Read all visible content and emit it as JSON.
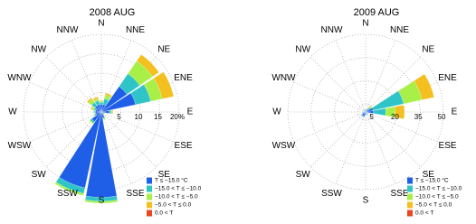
{
  "chart_data": [
    {
      "type": "windrose",
      "title": "2008 AUG",
      "categories": [
        "N",
        "NNE",
        "NE",
        "ENE",
        "E",
        "ESE",
        "SE",
        "SSE",
        "S",
        "SSW",
        "SW",
        "WSW",
        "W",
        "WNW",
        "NW",
        "NNW"
      ],
      "ylim": [
        0,
        20
      ],
      "yticks": [
        5,
        10,
        15,
        {
          "value": 20,
          "label": "20%"
        }
      ],
      "grid": true,
      "legend": "lower right",
      "series": [
        {
          "name": "T ≤ −15.0 °C",
          "color": "#1f5fe8",
          "values": [
            2,
            2,
            8,
            9,
            2,
            0.5,
            0.5,
            1.5,
            22,
            20,
            3,
            1.5,
            1.5,
            1.5,
            2,
            2
          ]
        },
        {
          "name": "−15.0 < T ≤ −10.0",
          "color": "#2fc4c8",
          "values": [
            0.5,
            1.5,
            4,
            4,
            0.5,
            0.3,
            0.3,
            0.3,
            1,
            1.5,
            0.5,
            0.3,
            0.3,
            0.5,
            1,
            1
          ]
        },
        {
          "name": "−10.0 < T ≤ −5.0",
          "color": "#a8f048",
          "values": [
            0.3,
            1,
            4,
            3,
            0.3,
            0.2,
            0.2,
            0.2,
            0.5,
            0.5,
            0.3,
            0.2,
            0.2,
            0.5,
            1,
            0.5
          ]
        },
        {
          "name": "−5.0 < T ≤ 0.0",
          "color": "#f4c020",
          "values": [
            0.2,
            0.5,
            2,
            3,
            0.2,
            0,
            0,
            0,
            0,
            0,
            0,
            0,
            0,
            0.3,
            0.5,
            0.5
          ]
        },
        {
          "name": "0.0 < T",
          "color": "#e84820",
          "values": [
            0,
            0,
            0,
            0,
            0,
            0,
            0,
            0,
            0,
            0,
            0,
            0,
            0,
            0,
            0,
            0
          ]
        }
      ]
    },
    {
      "type": "windrose",
      "title": "2009 AUG",
      "categories": [
        "N",
        "NNE",
        "NE",
        "ENE",
        "E",
        "ESE",
        "SE",
        "SSE",
        "S",
        "SSW",
        "SW",
        "WSW",
        "W",
        "WNW",
        "NW",
        "NNW"
      ],
      "ylim": [
        0,
        50
      ],
      "yticks": [
        5,
        20,
        35,
        50
      ],
      "grid": true,
      "legend": "lower right",
      "series": [
        {
          "name": "T ≤ −15.0 °C",
          "color": "#1f5fe8",
          "values": [
            1,
            1,
            2,
            5,
            5,
            1,
            1,
            1,
            2,
            3,
            3,
            2,
            1,
            1,
            1,
            1
          ]
        },
        {
          "name": "−15.0 < T ≤ −10.0",
          "color": "#2fc4c8",
          "values": [
            0.5,
            0.5,
            1.5,
            20,
            8,
            0.5,
            0.5,
            0.3,
            0.3,
            0.5,
            0.5,
            0.3,
            0.3,
            0.3,
            0.5,
            0.5
          ]
        },
        {
          "name": "−10.0 < T ≤ −5.0",
          "color": "#a8f048",
          "values": [
            0.3,
            0.3,
            1,
            12,
            6,
            0.3,
            0.3,
            0,
            0,
            0,
            0,
            0,
            0,
            0,
            0.3,
            0.3
          ]
        },
        {
          "name": "−5.0 < T ≤ 0.0",
          "color": "#f4c020",
          "values": [
            0,
            0,
            0.5,
            8,
            6,
            0,
            0,
            0,
            0,
            0,
            0,
            0,
            0,
            0,
            0,
            0
          ]
        },
        {
          "name": "0.0 < T",
          "color": "#e84820",
          "values": [
            0,
            0,
            0,
            0,
            0,
            0,
            0,
            0,
            0,
            0,
            0,
            0,
            0,
            0,
            0,
            0
          ]
        }
      ]
    }
  ]
}
